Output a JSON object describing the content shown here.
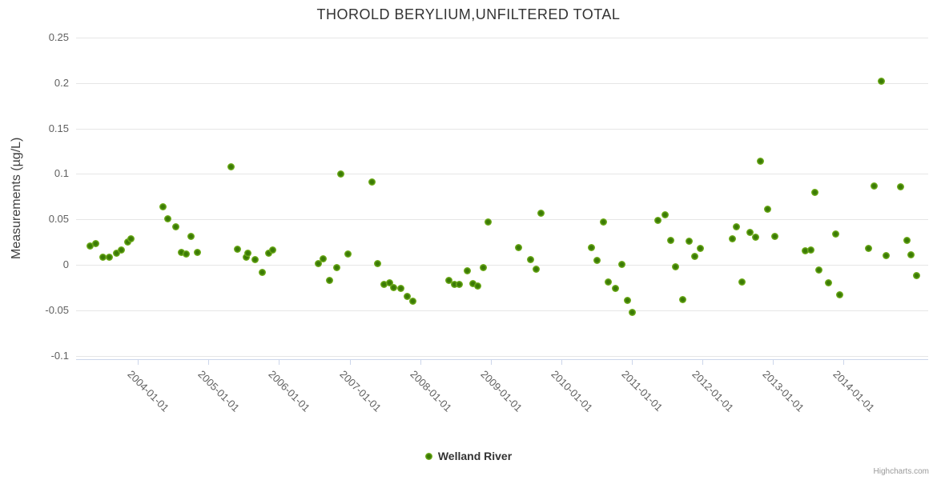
{
  "chart": {
    "title": "THOROLD BERYLIUM,UNFILTERED TOTAL",
    "y_axis_title": "Measurements (µg/L)",
    "series_name": "Welland River",
    "credit": "Highcharts.com"
  },
  "colors": {
    "background": "#ffffff",
    "grid_line": "#e6e6e6",
    "axis_line": "#ccd6eb",
    "tick_label": "#606060",
    "title_text": "#333333",
    "marker_outer": "#77b41f",
    "marker_inner": "#3a7a05",
    "legend_text": "#333333",
    "credit_text": "#999999"
  },
  "chart_data": {
    "type": "scatter",
    "title": "THOROLD BERYLIUM,UNFILTERED TOTAL",
    "xlabel": "",
    "ylabel": "Measurements (µg/L)",
    "grid": true,
    "legend_position": "bottom-center",
    "xlim": [
      "2003-02-15",
      "2015-03-15"
    ],
    "ylim": [
      -0.103,
      0.25
    ],
    "y_tick_values": [
      -0.1,
      -0.05,
      0,
      0.05,
      0.1,
      0.15,
      0.2,
      0.25
    ],
    "y_tick_labels": [
      "-0.1",
      "-0.05",
      "0",
      "0.05",
      "0.1",
      "0.15",
      "0.2",
      "0.25"
    ],
    "x_tick_labels": [
      "2004-01-01",
      "2005-01-01",
      "2006-01-01",
      "2007-01-01",
      "2008-01-01",
      "2009-01-01",
      "2010-01-01",
      "2011-01-01",
      "2012-01-01",
      "2013-01-01",
      "2014-01-01"
    ],
    "series": [
      {
        "name": "Welland River",
        "marker_color": "#77b41f",
        "marker_center_color": "#3a7a05",
        "points": [
          [
            "2003-04-27",
            0.021
          ],
          [
            "2003-05-26",
            0.023
          ],
          [
            "2003-07-02",
            0.008
          ],
          [
            "2003-08-04",
            0.008
          ],
          [
            "2003-09-11",
            0.013
          ],
          [
            "2003-10-05",
            0.016
          ],
          [
            "2003-11-07",
            0.025
          ],
          [
            "2003-11-24",
            0.029
          ],
          [
            "2004-05-08",
            0.064
          ],
          [
            "2004-06-02",
            0.051
          ],
          [
            "2004-07-16",
            0.042
          ],
          [
            "2004-08-11",
            0.014
          ],
          [
            "2004-09-09",
            0.012
          ],
          [
            "2004-09-30",
            0.031
          ],
          [
            "2004-11-06",
            0.014
          ],
          [
            "2005-04-28",
            0.108
          ],
          [
            "2005-05-31",
            0.017
          ],
          [
            "2005-07-13",
            0.008
          ],
          [
            "2005-07-24",
            0.013
          ],
          [
            "2005-08-30",
            0.006
          ],
          [
            "2005-10-05",
            -0.008
          ],
          [
            "2005-11-07",
            0.013
          ],
          [
            "2005-11-28",
            0.016
          ],
          [
            "2006-07-20",
            0.001
          ],
          [
            "2006-08-18",
            0.007
          ],
          [
            "2006-09-21",
            -0.017
          ],
          [
            "2006-10-24",
            -0.003
          ],
          [
            "2006-11-18",
            0.1
          ],
          [
            "2006-12-24",
            0.012
          ],
          [
            "2007-04-24",
            0.091
          ],
          [
            "2007-05-23",
            0.001
          ],
          [
            "2007-06-29",
            -0.022
          ],
          [
            "2007-07-24",
            -0.02
          ],
          [
            "2007-08-18",
            -0.025
          ],
          [
            "2007-09-24",
            -0.026
          ],
          [
            "2007-10-27",
            -0.035
          ],
          [
            "2007-11-25",
            -0.04
          ],
          [
            "2008-05-29",
            -0.017
          ],
          [
            "2008-06-27",
            -0.022
          ],
          [
            "2008-07-23",
            -0.022
          ],
          [
            "2008-09-01",
            -0.007
          ],
          [
            "2008-09-30",
            -0.021
          ],
          [
            "2008-10-26",
            -0.023
          ],
          [
            "2008-11-24",
            -0.003
          ],
          [
            "2008-12-19",
            0.047
          ],
          [
            "2009-05-26",
            0.019
          ],
          [
            "2009-07-27",
            0.006
          ],
          [
            "2009-08-25",
            -0.005
          ],
          [
            "2009-09-19",
            0.057
          ],
          [
            "2010-06-06",
            0.019
          ],
          [
            "2010-07-05",
            0.005
          ],
          [
            "2010-08-07",
            0.047
          ],
          [
            "2010-09-01",
            -0.019
          ],
          [
            "2010-10-08",
            -0.026
          ],
          [
            "2010-11-10",
            0.0
          ],
          [
            "2010-12-09",
            -0.039
          ],
          [
            "2011-01-03",
            -0.052
          ],
          [
            "2011-05-15",
            0.049
          ],
          [
            "2011-06-24",
            0.055
          ],
          [
            "2011-07-19",
            0.027
          ],
          [
            "2011-08-14",
            -0.002
          ],
          [
            "2011-09-20",
            -0.038
          ],
          [
            "2011-10-23",
            0.026
          ],
          [
            "2011-11-25",
            0.009
          ],
          [
            "2011-12-23",
            0.018
          ],
          [
            "2012-06-05",
            0.029
          ],
          [
            "2012-06-26",
            0.042
          ],
          [
            "2012-07-23",
            -0.019
          ],
          [
            "2012-09-05",
            0.036
          ],
          [
            "2012-10-03",
            0.03
          ],
          [
            "2012-10-29",
            0.114
          ],
          [
            "2012-12-05",
            0.061
          ],
          [
            "2013-01-10",
            0.031
          ],
          [
            "2013-06-17",
            0.015
          ],
          [
            "2013-07-16",
            0.016
          ],
          [
            "2013-08-07",
            0.08
          ],
          [
            "2013-08-28",
            -0.006
          ],
          [
            "2013-10-15",
            -0.02
          ],
          [
            "2013-11-21",
            0.034
          ],
          [
            "2013-12-13",
            -0.033
          ],
          [
            "2014-05-12",
            0.018
          ],
          [
            "2014-06-10",
            0.087
          ],
          [
            "2014-07-16",
            0.202
          ],
          [
            "2014-08-11",
            0.01
          ],
          [
            "2014-10-23",
            0.086
          ],
          [
            "2014-11-25",
            0.027
          ],
          [
            "2014-12-16",
            0.011
          ],
          [
            "2015-01-14",
            -0.012
          ]
        ]
      }
    ]
  }
}
